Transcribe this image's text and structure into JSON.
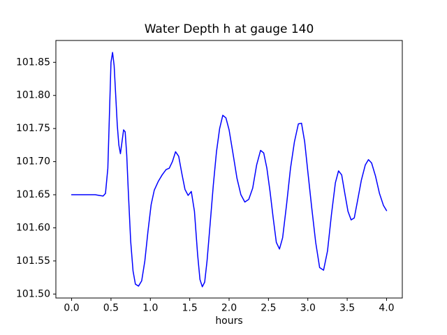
{
  "figure_bg": "#ffffff",
  "chart_data": {
    "type": "line",
    "title": "Water Depth h at gauge 140",
    "xlabel": "hours",
    "ylabel": "",
    "line_color": "#0000ff",
    "grid": false,
    "legend": null,
    "xlim": [
      -0.2,
      4.2
    ],
    "ylim": [
      101.494,
      101.883
    ],
    "x_ticks": [
      0.0,
      0.5,
      1.0,
      1.5,
      2.0,
      2.5,
      3.0,
      3.5,
      4.0
    ],
    "x_tick_labels": [
      "0.0",
      "0.5",
      "1.0",
      "1.5",
      "2.0",
      "2.5",
      "3.0",
      "3.5",
      "4.0"
    ],
    "y_ticks": [
      101.5,
      101.55,
      101.6,
      101.65,
      101.7,
      101.75,
      101.8,
      101.85
    ],
    "y_tick_labels": [
      "101.50",
      "101.55",
      "101.60",
      "101.65",
      "101.70",
      "101.75",
      "101.80",
      "101.85"
    ],
    "points": [
      [
        0.0,
        101.65
      ],
      [
        0.05,
        101.65
      ],
      [
        0.1,
        101.65
      ],
      [
        0.15,
        101.65
      ],
      [
        0.2,
        101.65
      ],
      [
        0.25,
        101.65
      ],
      [
        0.3,
        101.65
      ],
      [
        0.35,
        101.649
      ],
      [
        0.4,
        101.648
      ],
      [
        0.43,
        101.652
      ],
      [
        0.46,
        101.69
      ],
      [
        0.48,
        101.77
      ],
      [
        0.5,
        101.85
      ],
      [
        0.52,
        101.865
      ],
      [
        0.54,
        101.845
      ],
      [
        0.56,
        101.8
      ],
      [
        0.58,
        101.755
      ],
      [
        0.6,
        101.725
      ],
      [
        0.62,
        101.712
      ],
      [
        0.64,
        101.73
      ],
      [
        0.66,
        101.748
      ],
      [
        0.68,
        101.745
      ],
      [
        0.7,
        101.71
      ],
      [
        0.72,
        101.655
      ],
      [
        0.75,
        101.58
      ],
      [
        0.78,
        101.535
      ],
      [
        0.81,
        101.515
      ],
      [
        0.85,
        101.512
      ],
      [
        0.89,
        101.52
      ],
      [
        0.93,
        101.55
      ],
      [
        0.97,
        101.595
      ],
      [
        1.01,
        101.635
      ],
      [
        1.05,
        101.657
      ],
      [
        1.1,
        101.67
      ],
      [
        1.15,
        101.68
      ],
      [
        1.2,
        101.688
      ],
      [
        1.24,
        101.69
      ],
      [
        1.28,
        101.7
      ],
      [
        1.32,
        101.715
      ],
      [
        1.36,
        101.708
      ],
      [
        1.4,
        101.682
      ],
      [
        1.44,
        101.658
      ],
      [
        1.48,
        101.649
      ],
      [
        1.52,
        101.655
      ],
      [
        1.56,
        101.625
      ],
      [
        1.6,
        101.56
      ],
      [
        1.63,
        101.522
      ],
      [
        1.66,
        101.511
      ],
      [
        1.69,
        101.518
      ],
      [
        1.72,
        101.55
      ],
      [
        1.76,
        101.607
      ],
      [
        1.8,
        101.665
      ],
      [
        1.84,
        101.715
      ],
      [
        1.88,
        101.75
      ],
      [
        1.92,
        101.77
      ],
      [
        1.96,
        101.766
      ],
      [
        2.0,
        101.748
      ],
      [
        2.05,
        101.712
      ],
      [
        2.1,
        101.675
      ],
      [
        2.15,
        101.65
      ],
      [
        2.2,
        101.639
      ],
      [
        2.25,
        101.643
      ],
      [
        2.3,
        101.66
      ],
      [
        2.35,
        101.695
      ],
      [
        2.4,
        101.717
      ],
      [
        2.44,
        101.713
      ],
      [
        2.48,
        101.69
      ],
      [
        2.52,
        101.655
      ],
      [
        2.56,
        101.615
      ],
      [
        2.6,
        101.578
      ],
      [
        2.64,
        101.568
      ],
      [
        2.68,
        101.585
      ],
      [
        2.73,
        101.635
      ],
      [
        2.78,
        101.69
      ],
      [
        2.83,
        101.73
      ],
      [
        2.88,
        101.757
      ],
      [
        2.92,
        101.758
      ],
      [
        2.96,
        101.73
      ],
      [
        3.0,
        101.685
      ],
      [
        3.05,
        101.63
      ],
      [
        3.1,
        101.578
      ],
      [
        3.15,
        101.54
      ],
      [
        3.2,
        101.536
      ],
      [
        3.25,
        101.565
      ],
      [
        3.3,
        101.62
      ],
      [
        3.35,
        101.668
      ],
      [
        3.39,
        101.686
      ],
      [
        3.43,
        101.68
      ],
      [
        3.47,
        101.652
      ],
      [
        3.51,
        101.625
      ],
      [
        3.55,
        101.612
      ],
      [
        3.59,
        101.615
      ],
      [
        3.63,
        101.64
      ],
      [
        3.68,
        101.672
      ],
      [
        3.73,
        101.695
      ],
      [
        3.77,
        101.703
      ],
      [
        3.81,
        101.698
      ],
      [
        3.86,
        101.678
      ],
      [
        3.91,
        101.652
      ],
      [
        3.96,
        101.634
      ],
      [
        4.0,
        101.626
      ]
    ]
  }
}
